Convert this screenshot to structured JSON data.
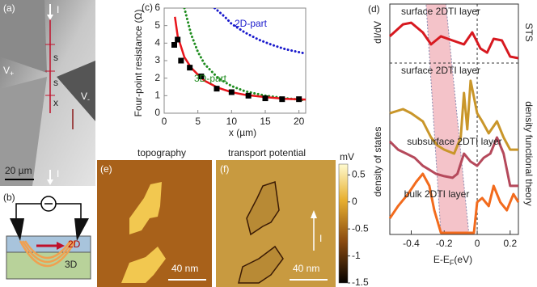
{
  "panels": {
    "a": {
      "label": "(a)",
      "current_top": "I",
      "current_bottom": "I",
      "v_plus": {
        "main": "V",
        "sub": "+"
      },
      "v_minus": {
        "main": "V",
        "sub": "-"
      },
      "s1": "s",
      "s2": "s",
      "x": "x",
      "scale": "20 µm"
    },
    "b": {
      "label": "(b)",
      "top_layer": "2D",
      "bottom_layer": "3D"
    },
    "e": {
      "label": "(e)",
      "title": "topography",
      "scale": "40 nm"
    },
    "f": {
      "label": "(f)",
      "title": "transport potential",
      "current": "I",
      "scale": "40 nm",
      "colorbar": {
        "unit": "mV",
        "lim": [
          -1.5,
          0.7
        ],
        "ticks": [
          0.5,
          0,
          -0.5,
          -1,
          -1.5
        ]
      }
    }
  },
  "chart_data": [
    {
      "type": "line",
      "label": "(c)",
      "ylabel": "Four-point resistance (Ω)",
      "xlabel": "x (µm)",
      "xlim": [
        0,
        21
      ],
      "ylim": [
        0,
        6
      ],
      "xticks": [
        0,
        5,
        10,
        15,
        20
      ],
      "yticks": [
        0,
        1,
        2,
        3,
        4,
        5,
        6
      ],
      "series": [
        {
          "kind": "scatter",
          "color": "#000000",
          "x": [
            1.5,
            2,
            2.5,
            3.8,
            5.5,
            7.8,
            10,
            12.5,
            15,
            17.5,
            20
          ],
          "values": [
            3.9,
            4.2,
            3.0,
            2.6,
            2.1,
            1.4,
            1.2,
            1.0,
            0.85,
            0.8,
            0.8
          ]
        },
        {
          "kind": "line",
          "color": "#e8141b",
          "x": [
            1.6,
            2,
            3,
            4,
            5,
            6,
            8,
            10,
            12,
            15,
            18,
            21
          ],
          "values": [
            5.5,
            4.4,
            3.2,
            2.6,
            2.2,
            1.85,
            1.45,
            1.2,
            1.05,
            0.92,
            0.82,
            0.78
          ]
        },
        {
          "kind": "dotted",
          "name": "3D-part",
          "color": "#1e8c1e",
          "x": [
            3,
            4,
            5,
            6,
            8,
            10,
            12,
            15,
            18,
            21
          ],
          "values": [
            6,
            4.5,
            3.5,
            2.8,
            2.0,
            1.55,
            1.25,
            1.0,
            0.85,
            0.75
          ]
        },
        {
          "kind": "dotted",
          "name": "2D-part",
          "color": "#1a1acc",
          "x": [
            7.5,
            9,
            10,
            12,
            14,
            16,
            18,
            21
          ],
          "values": [
            6,
            5.5,
            5.1,
            4.6,
            4.2,
            3.9,
            3.65,
            3.4
          ]
        }
      ]
    },
    {
      "type": "line",
      "label": "(d)",
      "xlabel": {
        "main": "E-E",
        "sub": "F",
        "unit": "(eV)"
      },
      "xlim": [
        -0.53,
        0.25
      ],
      "ylim": [
        0,
        10
      ],
      "xticks": [
        -0.4,
        -0.2,
        0,
        0.2
      ],
      "left_labels": [
        "dI/dV",
        "density of states"
      ],
      "right_labels": [
        "STS",
        "density functional theory"
      ],
      "band": {
        "top": [
          -0.31,
          -0.19
        ],
        "bottom": [
          -0.22,
          -0.05
        ],
        "color": "#f2b8c0"
      },
      "series": [
        {
          "name": "surface 2DTI layer",
          "color": "#d71920",
          "x": [
            -0.53,
            -0.45,
            -0.4,
            -0.33,
            -0.28,
            -0.22,
            -0.15,
            -0.08,
            -0.03,
            0.02,
            0.06,
            0.1,
            0.15,
            0.2,
            0.25
          ],
          "values": [
            8.6,
            9.12,
            9.19,
            8.77,
            8.25,
            8.6,
            8.42,
            8.25,
            8.77,
            8.07,
            7.89,
            8.49,
            8.42,
            7.72,
            7.65
          ]
        },
        {
          "name": "surface 2DTI layer",
          "color": "#c9962a",
          "x": [
            -0.53,
            -0.45,
            -0.4,
            -0.33,
            -0.28,
            -0.24,
            -0.2,
            -0.14,
            -0.1,
            -0.08,
            -0.06,
            -0.04,
            -0.02,
            0,
            0.03,
            0.07,
            0.12,
            0.16,
            0.2,
            0.25
          ],
          "values": [
            5.26,
            5.44,
            5.26,
            4.91,
            4.21,
            3.86,
            3.68,
            3.51,
            4.21,
            6.14,
            4.56,
            6.67,
            5.96,
            5.26,
            4.91,
            4.39,
            4.91,
            4.21,
            3.68,
            3.68
          ]
        },
        {
          "name": "subsurface 2DTI layer",
          "color": "#b5495b",
          "x": [
            -0.53,
            -0.48,
            -0.43,
            -0.38,
            -0.33,
            -0.29,
            -0.25,
            -0.2,
            -0.15,
            -0.12,
            -0.08,
            -0.04,
            0,
            0.04,
            0.08,
            0.12,
            0.16,
            0.2,
            0.25
          ],
          "values": [
            4.04,
            3.68,
            3.51,
            3.33,
            2.98,
            2.81,
            2.63,
            2.53,
            2.46,
            2.63,
            3.51,
            3.16,
            2.98,
            3.33,
            3.51,
            4.21,
            3.51,
            2.11,
            2.11
          ]
        },
        {
          "name": "bulk 2DTI layer",
          "color": "#f26b1d",
          "x": [
            -0.53,
            -0.48,
            -0.42,
            -0.37,
            -0.33,
            -0.29,
            -0.26,
            -0.22,
            -0.1,
            -0.02,
            0,
            0.03,
            0.07,
            0.1,
            0.14,
            0.18,
            0.22,
            0.25
          ],
          "values": [
            0.7,
            1.23,
            1.75,
            2.28,
            2.63,
            2.11,
            1.05,
            0.07,
            0.07,
            0.07,
            1.4,
            1.58,
            1.23,
            2.11,
            1.4,
            1.05,
            1.75,
            1.4
          ]
        }
      ]
    }
  ]
}
